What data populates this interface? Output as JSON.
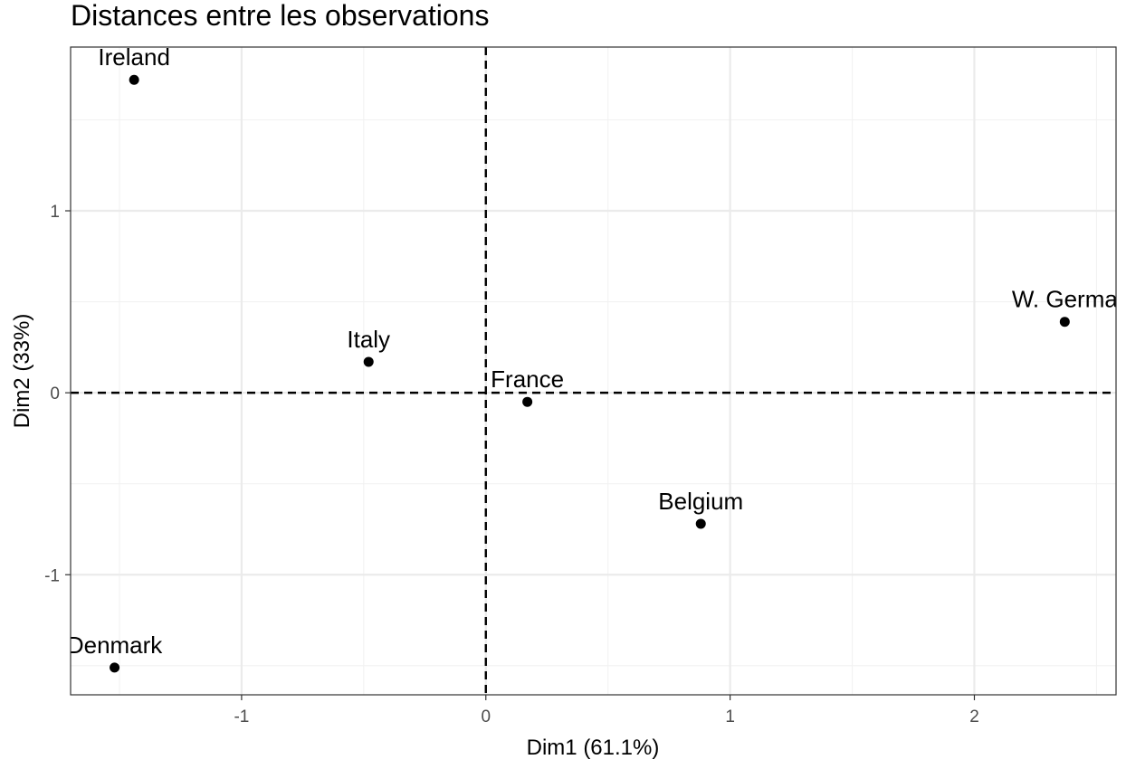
{
  "chart_data": {
    "type": "scatter",
    "title": "Distances entre les observations",
    "xlabel": "Dim1 (61.1%)",
    "ylabel": "Dim2 (33%)",
    "xlim": [
      -1.7,
      2.58
    ],
    "ylim": [
      -1.66,
      1.9
    ],
    "x_ticks": [
      -1,
      0,
      1,
      2
    ],
    "y_ticks": [
      -1,
      0,
      1
    ],
    "x_tick_labels": [
      "-1",
      "0",
      "1",
      "2"
    ],
    "y_tick_labels": [
      "-1",
      "0",
      "1"
    ],
    "grid": true,
    "reference_lines": {
      "x": 0,
      "y": 0,
      "style": "dashed"
    },
    "points": [
      {
        "label": "Ireland",
        "x": -1.44,
        "y": 1.72
      },
      {
        "label": "Italy",
        "x": -0.48,
        "y": 0.17
      },
      {
        "label": "France",
        "x": 0.17,
        "y": -0.05
      },
      {
        "label": "W. Germa",
        "x": 2.37,
        "y": 0.39
      },
      {
        "label": "Belgium",
        "x": 0.88,
        "y": -0.72
      },
      {
        "label": "Denmark",
        "x": -1.52,
        "y": -1.51
      }
    ]
  },
  "colors": {
    "background": "#ffffff",
    "panel_border": "#333333",
    "grid_major": "#ebebeb",
    "grid_minor": "#f2f2f2",
    "points": "#000000",
    "reference_line": "#000000",
    "tick_text": "#4d4d4d"
  }
}
